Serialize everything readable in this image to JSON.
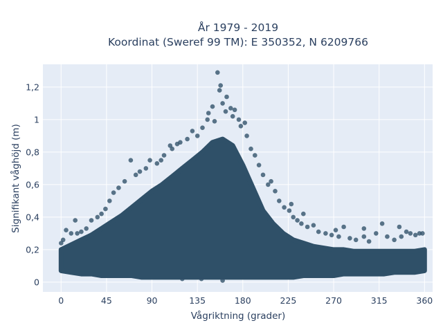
{
  "chart_data": {
    "type": "scatter",
    "title": "År 1979 - 2019",
    "subtitle": "Koordinat (Sweref 99 TM): E 350352, N 6209766",
    "xlabel": "Vågriktning (grader)",
    "ylabel": "Signifikant våghöjd (m)",
    "xlim": [
      -18,
      368
    ],
    "ylim": [
      -0.06,
      1.34
    ],
    "x_ticks": [
      0,
      45,
      90,
      135,
      180,
      225,
      270,
      315,
      360
    ],
    "x_tick_labels": [
      "0",
      "45",
      "90",
      "135",
      "180",
      "225",
      "270",
      "315",
      "360"
    ],
    "y_ticks": [
      0,
      0.2,
      0.4,
      0.6,
      0.8,
      1.0,
      1.2
    ],
    "y_tick_labels": [
      "0",
      "0,2",
      "0,4",
      "0,6",
      "0,8",
      "1",
      "1,2"
    ],
    "grid": true,
    "marker_color": "#2f5068",
    "background_color": "#e5ecf6",
    "envelope": {
      "x": [
        0,
        10,
        20,
        30,
        40,
        50,
        60,
        70,
        80,
        90,
        100,
        110,
        120,
        130,
        140,
        150,
        160,
        170,
        180,
        190,
        200,
        210,
        220,
        230,
        240,
        250,
        260,
        270,
        280,
        290,
        300,
        310,
        320,
        330,
        340,
        350,
        360
      ],
      "low": [
        0.07,
        0.06,
        0.05,
        0.05,
        0.04,
        0.04,
        0.04,
        0.04,
        0.03,
        0.03,
        0.03,
        0.03,
        0.03,
        0.03,
        0.03,
        0.03,
        0.03,
        0.03,
        0.03,
        0.03,
        0.03,
        0.03,
        0.03,
        0.03,
        0.04,
        0.04,
        0.04,
        0.04,
        0.05,
        0.05,
        0.05,
        0.05,
        0.05,
        0.06,
        0.06,
        0.06,
        0.07
      ],
      "high": [
        0.2,
        0.23,
        0.26,
        0.29,
        0.33,
        0.37,
        0.41,
        0.46,
        0.51,
        0.56,
        0.6,
        0.65,
        0.7,
        0.75,
        0.8,
        0.86,
        0.88,
        0.84,
        0.72,
        0.58,
        0.44,
        0.36,
        0.3,
        0.26,
        0.24,
        0.22,
        0.21,
        0.2,
        0.2,
        0.19,
        0.19,
        0.19,
        0.19,
        0.19,
        0.19,
        0.19,
        0.2
      ]
    },
    "points": [
      {
        "x": 155,
        "y": 1.29
      },
      {
        "x": 158,
        "y": 1.21
      },
      {
        "x": 157,
        "y": 1.18
      },
      {
        "x": 164,
        "y": 1.14
      },
      {
        "x": 160,
        "y": 1.1
      },
      {
        "x": 168,
        "y": 1.07
      },
      {
        "x": 172,
        "y": 1.06
      },
      {
        "x": 150,
        "y": 1.08
      },
      {
        "x": 176,
        "y": 1.0
      },
      {
        "x": 182,
        "y": 0.98
      },
      {
        "x": 145,
        "y": 1.0
      },
      {
        "x": 163,
        "y": 1.05
      },
      {
        "x": 170,
        "y": 1.02
      },
      {
        "x": 178,
        "y": 0.96
      },
      {
        "x": 184,
        "y": 0.9
      },
      {
        "x": 152,
        "y": 0.99
      },
      {
        "x": 140,
        "y": 0.95
      },
      {
        "x": 135,
        "y": 0.9
      },
      {
        "x": 130,
        "y": 0.93
      },
      {
        "x": 125,
        "y": 0.88
      },
      {
        "x": 118,
        "y": 0.86
      },
      {
        "x": 115,
        "y": 0.85
      },
      {
        "x": 108,
        "y": 0.84
      },
      {
        "x": 110,
        "y": 0.82
      },
      {
        "x": 102,
        "y": 0.78
      },
      {
        "x": 99,
        "y": 0.75
      },
      {
        "x": 95,
        "y": 0.73
      },
      {
        "x": 88,
        "y": 0.75
      },
      {
        "x": 84,
        "y": 0.7
      },
      {
        "x": 78,
        "y": 0.68
      },
      {
        "x": 74,
        "y": 0.66
      },
      {
        "x": 69,
        "y": 0.75
      },
      {
        "x": 63,
        "y": 0.62
      },
      {
        "x": 57,
        "y": 0.58
      },
      {
        "x": 52,
        "y": 0.55
      },
      {
        "x": 48,
        "y": 0.5
      },
      {
        "x": 44,
        "y": 0.45
      },
      {
        "x": 40,
        "y": 0.42
      },
      {
        "x": 36,
        "y": 0.4
      },
      {
        "x": 30,
        "y": 0.38
      },
      {
        "x": 25,
        "y": 0.33
      },
      {
        "x": 20,
        "y": 0.31
      },
      {
        "x": 16,
        "y": 0.3
      },
      {
        "x": 10,
        "y": 0.3
      },
      {
        "x": 5,
        "y": 0.32
      },
      {
        "x": 14,
        "y": 0.38
      },
      {
        "x": 2,
        "y": 0.26
      },
      {
        "x": 0,
        "y": 0.24
      },
      {
        "x": 188,
        "y": 0.82
      },
      {
        "x": 192,
        "y": 0.78
      },
      {
        "x": 196,
        "y": 0.72
      },
      {
        "x": 200,
        "y": 0.66
      },
      {
        "x": 205,
        "y": 0.6
      },
      {
        "x": 212,
        "y": 0.56
      },
      {
        "x": 216,
        "y": 0.5
      },
      {
        "x": 221,
        "y": 0.46
      },
      {
        "x": 226,
        "y": 0.44
      },
      {
        "x": 230,
        "y": 0.4
      },
      {
        "x": 234,
        "y": 0.38
      },
      {
        "x": 238,
        "y": 0.36
      },
      {
        "x": 244,
        "y": 0.34
      },
      {
        "x": 250,
        "y": 0.35
      },
      {
        "x": 255,
        "y": 0.31
      },
      {
        "x": 262,
        "y": 0.3
      },
      {
        "x": 268,
        "y": 0.29
      },
      {
        "x": 275,
        "y": 0.28
      },
      {
        "x": 280,
        "y": 0.34
      },
      {
        "x": 286,
        "y": 0.27
      },
      {
        "x": 292,
        "y": 0.26
      },
      {
        "x": 300,
        "y": 0.28
      },
      {
        "x": 305,
        "y": 0.25
      },
      {
        "x": 312,
        "y": 0.3
      },
      {
        "x": 318,
        "y": 0.36
      },
      {
        "x": 323,
        "y": 0.28
      },
      {
        "x": 330,
        "y": 0.26
      },
      {
        "x": 337,
        "y": 0.28
      },
      {
        "x": 342,
        "y": 0.31
      },
      {
        "x": 346,
        "y": 0.3
      },
      {
        "x": 351,
        "y": 0.29
      },
      {
        "x": 355,
        "y": 0.3
      },
      {
        "x": 358,
        "y": 0.3
      },
      {
        "x": 335,
        "y": 0.34
      },
      {
        "x": 300,
        "y": 0.33
      },
      {
        "x": 272,
        "y": 0.32
      },
      {
        "x": 240,
        "y": 0.42
      },
      {
        "x": 228,
        "y": 0.48
      },
      {
        "x": 208,
        "y": 0.62
      },
      {
        "x": 146,
        "y": 1.04
      },
      {
        "x": 139,
        "y": 0.02
      },
      {
        "x": 160,
        "y": 0.01
      },
      {
        "x": 120,
        "y": 0.02
      }
    ]
  }
}
